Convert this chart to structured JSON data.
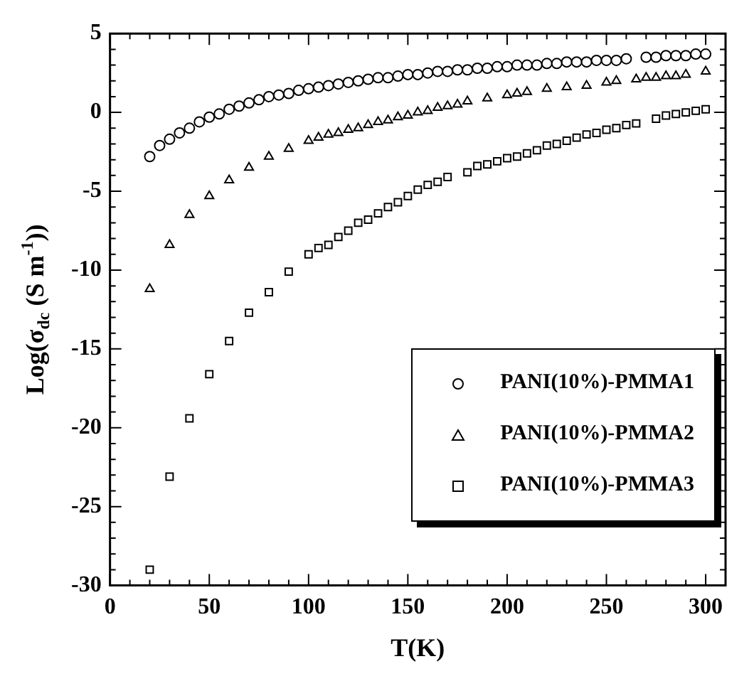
{
  "chart_data": {
    "type": "scatter",
    "xlabel": "T(K)",
    "ylabel": "Log(σ$_{dc}$ (S m$^{-1}$))",
    "xlim": [
      0,
      310
    ],
    "ylim": [
      -30,
      5
    ],
    "xticks": [
      0,
      {
        "value": 10,
        "label": null
      },
      {
        "value": 20,
        "label": null
      },
      {
        "value": 30,
        "label": null
      },
      {
        "value": 40,
        "label": null
      },
      50,
      {
        "value": 60,
        "label": null
      },
      {
        "value": 70,
        "label": null
      },
      {
        "value": 80,
        "label": null
      },
      {
        "value": 90,
        "label": null
      },
      100,
      {
        "value": 110,
        "label": null
      },
      {
        "value": 120,
        "label": null
      },
      {
        "value": 130,
        "label": null
      },
      {
        "value": 140,
        "label": null
      },
      150,
      {
        "value": 160,
        "label": null
      },
      {
        "value": 170,
        "label": null
      },
      {
        "value": 180,
        "label": null
      },
      {
        "value": 190,
        "label": null
      },
      200,
      {
        "value": 210,
        "label": null
      },
      {
        "value": 220,
        "label": null
      },
      {
        "value": 230,
        "label": null
      },
      {
        "value": 240,
        "label": null
      },
      250,
      {
        "value": 260,
        "label": null
      },
      {
        "value": 270,
        "label": null
      },
      {
        "value": 280,
        "label": null
      },
      {
        "value": 290,
        "label": null
      },
      300
    ],
    "yticks": [
      -30,
      {
        "value": -29,
        "label": null
      },
      {
        "value": -28,
        "label": null
      },
      {
        "value": -27,
        "label": null
      },
      {
        "value": -26,
        "label": null
      },
      -25,
      {
        "value": -24,
        "label": null
      },
      {
        "value": -23,
        "label": null
      },
      {
        "value": -22,
        "label": null
      },
      {
        "value": -21,
        "label": null
      },
      -20,
      {
        "value": -19,
        "label": null
      },
      {
        "value": -18,
        "label": null
      },
      {
        "value": -17,
        "label": null
      },
      {
        "value": -16,
        "label": null
      },
      -15,
      {
        "value": -14,
        "label": null
      },
      {
        "value": -13,
        "label": null
      },
      {
        "value": -12,
        "label": null
      },
      {
        "value": -11,
        "label": null
      },
      -10,
      {
        "value": -9,
        "label": null
      },
      {
        "value": -8,
        "label": null
      },
      {
        "value": -7,
        "label": null
      },
      {
        "value": -6,
        "label": null
      },
      -5,
      {
        "value": -4,
        "label": null
      },
      {
        "value": -3,
        "label": null
      },
      {
        "value": -2,
        "label": null
      },
      {
        "value": -1,
        "label": null
      },
      0,
      {
        "value": 1,
        "label": null
      },
      {
        "value": 2,
        "label": null
      },
      {
        "value": 3,
        "label": null
      },
      {
        "value": 4,
        "label": null
      },
      5
    ],
    "legend": "bottom right",
    "grid": false,
    "series": [
      {
        "name": "PANI(10%)-PMMA1",
        "color": "#000000",
        "marker": "circle",
        "x": [
          20,
          25,
          30,
          35,
          40,
          45,
          50,
          55,
          60,
          65,
          70,
          75,
          80,
          85,
          90,
          95,
          100,
          105,
          110,
          115,
          120,
          125,
          130,
          135,
          140,
          145,
          150,
          155,
          160,
          165,
          170,
          175,
          180,
          185,
          190,
          195,
          200,
          205,
          210,
          215,
          220,
          225,
          230,
          235,
          240,
          245,
          250,
          255,
          260,
          270,
          275,
          280,
          285,
          290,
          295,
          300
        ],
        "values": [
          -2.8,
          -2.1,
          -1.7,
          -1.3,
          -1.0,
          -0.6,
          -0.3,
          -0.1,
          0.2,
          0.4,
          0.6,
          0.8,
          1.0,
          1.1,
          1.2,
          1.4,
          1.5,
          1.6,
          1.7,
          1.8,
          1.9,
          2.0,
          2.1,
          2.2,
          2.2,
          2.3,
          2.4,
          2.4,
          2.5,
          2.6,
          2.6,
          2.7,
          2.7,
          2.8,
          2.8,
          2.9,
          2.9,
          3.0,
          3.0,
          3.0,
          3.1,
          3.1,
          3.2,
          3.2,
          3.2,
          3.3,
          3.3,
          3.3,
          3.4,
          3.5,
          3.5,
          3.6,
          3.6,
          3.6,
          3.7,
          3.7
        ]
      },
      {
        "name": "PANI(10%)-PMMA2",
        "color": "#000000",
        "marker": "triangle",
        "x": [
          20,
          30,
          40,
          50,
          60,
          70,
          80,
          90,
          100,
          105,
          110,
          115,
          120,
          125,
          130,
          135,
          140,
          145,
          150,
          155,
          160,
          165,
          170,
          175,
          180,
          190,
          200,
          205,
          210,
          220,
          230,
          240,
          250,
          255,
          265,
          270,
          275,
          280,
          285,
          290,
          300
        ],
        "values": [
          -11.2,
          -8.4,
          -6.5,
          -5.3,
          -4.3,
          -3.5,
          -2.8,
          -2.3,
          -1.8,
          -1.6,
          -1.4,
          -1.3,
          -1.1,
          -1.0,
          -0.8,
          -0.6,
          -0.5,
          -0.3,
          -0.2,
          0.0,
          0.1,
          0.3,
          0.4,
          0.5,
          0.7,
          0.9,
          1.1,
          1.2,
          1.3,
          1.5,
          1.6,
          1.7,
          1.9,
          2.0,
          2.1,
          2.2,
          2.2,
          2.3,
          2.3,
          2.4,
          2.6
        ]
      },
      {
        "name": "PANI(10%)-PMMA3",
        "color": "#000000",
        "marker": "square",
        "x": [
          20,
          30,
          40,
          50,
          60,
          70,
          80,
          90,
          100,
          105,
          110,
          115,
          120,
          125,
          130,
          135,
          140,
          145,
          150,
          155,
          160,
          165,
          170,
          180,
          185,
          190,
          195,
          200,
          205,
          210,
          215,
          220,
          225,
          230,
          235,
          240,
          245,
          250,
          255,
          260,
          265,
          275,
          280,
          285,
          290,
          295,
          300
        ],
        "values": [
          -29.0,
          -23.1,
          -19.4,
          -16.6,
          -14.5,
          -12.7,
          -11.4,
          -10.1,
          -9.0,
          -8.6,
          -8.4,
          -7.9,
          -7.5,
          -7.0,
          -6.8,
          -6.4,
          -6.0,
          -5.7,
          -5.3,
          -4.9,
          -4.6,
          -4.4,
          -4.1,
          -3.8,
          -3.4,
          -3.3,
          -3.1,
          -2.9,
          -2.8,
          -2.6,
          -2.4,
          -2.1,
          -2.0,
          -1.8,
          -1.6,
          -1.4,
          -1.3,
          -1.1,
          -1.0,
          -0.8,
          -0.7,
          -0.4,
          -0.2,
          -0.1,
          0.0,
          0.1,
          0.2
        ]
      }
    ]
  }
}
